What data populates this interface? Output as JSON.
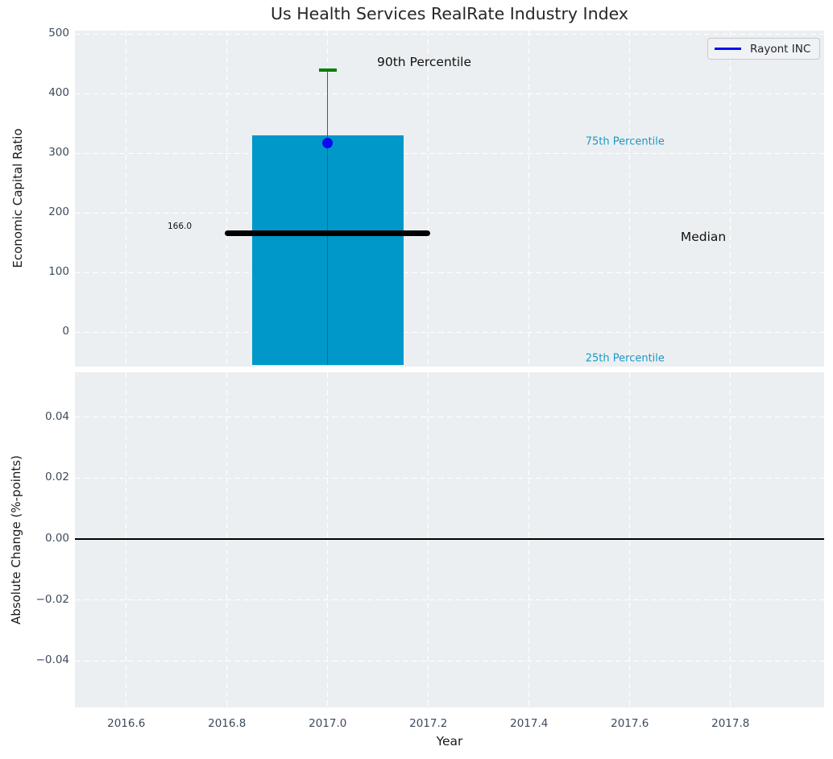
{
  "legend": {
    "label": "Rayont INC"
  },
  "colors": {
    "figure_bg": "#ffffff",
    "axes_bg": "#eceff1",
    "grid": "#ffffff",
    "bar": "#0098c8",
    "tick_label": "#3d4a5c",
    "percentile_label": "#1899c7",
    "annotation_dark": "#111111",
    "median_line": "#000000",
    "whisker": "#555555",
    "green_cap": "#008000",
    "dot": "#0b0bee",
    "legend_line": "#0b0bee",
    "zero_line": "#000000",
    "title": "#262626"
  },
  "x_axis": {
    "label": "Year",
    "xlim": [
      2016.498,
      2017.986
    ],
    "xticks": [
      {
        "value": 2016.6,
        "label": "2016.6"
      },
      {
        "value": 2016.8,
        "label": "2016.8"
      },
      {
        "value": 2017.0,
        "label": "2017.0"
      },
      {
        "value": 2017.2,
        "label": "2017.2"
      },
      {
        "value": 2017.4,
        "label": "2017.4"
      },
      {
        "value": 2017.6,
        "label": "2017.6"
      },
      {
        "value": 2017.8,
        "label": "2017.8"
      }
    ]
  },
  "chart_data": [
    {
      "type": "bar",
      "title": "Us Health Services RealRate Industry Index",
      "ylabel": "Economic Capital Ratio",
      "ylim": [
        -58,
        506
      ],
      "grid": true,
      "legend_position": "upper right",
      "yticks": [
        {
          "value": 0,
          "label": "0"
        },
        {
          "value": 100,
          "label": "100"
        },
        {
          "value": 200,
          "label": "200"
        },
        {
          "value": 300,
          "label": "300"
        },
        {
          "value": 400,
          "label": "400"
        },
        {
          "value": 500,
          "label": "500"
        }
      ],
      "series": [
        {
          "name": "Rayont INC",
          "x": 2017.0,
          "marker_value": 318,
          "percentiles": {
            "p90": 440,
            "p75": 330,
            "median": 166.0,
            "p25": -55
          },
          "bar_width": 0.3,
          "median_line_half_width": 0.204,
          "cap_half_width": 0.018
        }
      ],
      "annotations": [
        {
          "text": "90th Percentile",
          "x": 2017.098,
          "y": 453,
          "color_key": "annotation_dark",
          "size": 15.5
        },
        {
          "text": "75th Percentile",
          "x": 2017.512,
          "y": 319,
          "color_key": "percentile_label",
          "size": 13
        },
        {
          "text": "Median",
          "x": 2017.701,
          "y": 160,
          "color_key": "annotation_dark",
          "size": 15.5
        },
        {
          "text": "25th Percentile",
          "x": 2017.512,
          "y": -44,
          "color_key": "percentile_label",
          "size": 13
        },
        {
          "text": "166.0",
          "x": 2016.682,
          "y": 177,
          "color_key": "annotation_dark",
          "size": 10.5
        }
      ]
    },
    {
      "type": "line",
      "ylabel": "Absolute Change (%-points)",
      "xlabel": "Year",
      "ylim": [
        -0.0552,
        0.0547
      ],
      "grid": true,
      "yticks": [
        {
          "value": 0.04,
          "label": "0.04"
        },
        {
          "value": 0.02,
          "label": "0.02"
        },
        {
          "value": 0.0,
          "label": "0.00"
        },
        {
          "value": -0.02,
          "label": "−0.02"
        },
        {
          "value": -0.04,
          "label": "−0.04"
        }
      ],
      "zero_line": 0.0,
      "series": []
    }
  ]
}
